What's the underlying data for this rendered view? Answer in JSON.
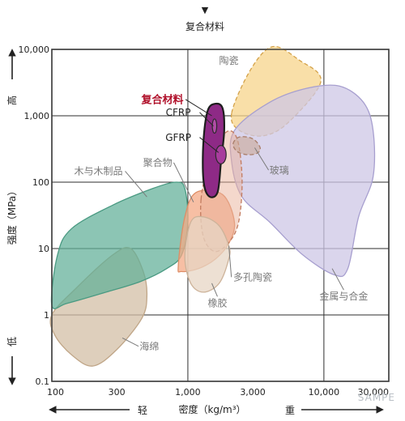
{
  "chart_data": {
    "type": "area",
    "title_marker": "▼",
    "title": "复合材料",
    "xlabel": "密度（kg/m³）",
    "ylabel": "强度（MPa）",
    "x_low_label": "轻",
    "x_high_label": "重",
    "y_high_label": "高",
    "y_low_label": "低",
    "x_scale": "log",
    "y_scale": "log",
    "xlim": [
      100,
      30000
    ],
    "ylim": [
      0.1,
      10000
    ],
    "x_ticks": [
      {
        "value": 100,
        "label": "100"
      },
      {
        "value": 300,
        "label": "300"
      },
      {
        "value": 1000,
        "label": "1,000"
      },
      {
        "value": 3000,
        "label": "3,000"
      },
      {
        "value": 10000,
        "label": "10,000"
      },
      {
        "value": 30000,
        "label": "30,000"
      }
    ],
    "y_ticks": [
      {
        "value": 0.1,
        "label": "0.1"
      },
      {
        "value": 1,
        "label": "1"
      },
      {
        "value": 10,
        "label": "10"
      },
      {
        "value": 100,
        "label": "100"
      },
      {
        "value": 1000,
        "label": "1,000"
      },
      {
        "value": 10000,
        "label": "10,000"
      }
    ],
    "grid_x": [
      100,
      1000,
      10000
    ],
    "grid_y": [
      1,
      10,
      100,
      1000
    ],
    "regions": [
      {
        "name": "海绵",
        "fill": "#d3bfa6",
        "stroke": "#c0a688",
        "opacity": 0.75,
        "points": [
          [
            100,
            1.0
          ],
          [
            150,
            2.5
          ],
          [
            280,
            8.0
          ],
          [
            380,
            10
          ],
          [
            470,
            4.5
          ],
          [
            500,
            2.0
          ],
          [
            460,
            0.9
          ],
          [
            300,
            0.3
          ],
          [
            200,
            0.17
          ],
          [
            140,
            0.25
          ],
          [
            105,
            0.5
          ]
        ]
      },
      {
        "name": "木与木制品",
        "fill": "#5fae97",
        "stroke": "#4a9a82",
        "opacity": 0.72,
        "points": [
          [
            100,
            1.4
          ],
          [
            110,
            8.0
          ],
          [
            140,
            20
          ],
          [
            280,
            45
          ],
          [
            550,
            80
          ],
          [
            820,
            100
          ],
          [
            950,
            80
          ],
          [
            1000,
            25
          ],
          [
            900,
            8.0
          ],
          [
            700,
            5.0
          ],
          [
            450,
            3.2
          ],
          [
            250,
            2.2
          ],
          [
            130,
            1.5
          ]
        ]
      },
      {
        "name": "陶瓷",
        "fill": "#f7d48b",
        "stroke": "#d4a24a",
        "opacity": 0.75,
        "dashed": true,
        "points": [
          [
            2100,
            1100
          ],
          [
            2900,
            5000
          ],
          [
            4200,
            11000
          ],
          [
            6500,
            7000
          ],
          [
            9500,
            3300
          ],
          [
            5500,
            800
          ],
          [
            3600,
            500
          ],
          [
            2400,
            600
          ]
        ]
      },
      {
        "name": "金属与合金",
        "fill": "#cdc7e6",
        "stroke": "#a79fcf",
        "opacity": 0.75,
        "points": [
          [
            2200,
            600
          ],
          [
            4000,
            1600
          ],
          [
            7500,
            2600
          ],
          [
            13000,
            2800
          ],
          [
            19500,
            1600
          ],
          [
            23000,
            600
          ],
          [
            23000,
            120
          ],
          [
            18000,
            30
          ],
          [
            15000,
            5.0
          ],
          [
            12000,
            4.0
          ],
          [
            7000,
            8.0
          ],
          [
            4000,
            25
          ],
          [
            2500,
            60
          ],
          [
            2100,
            200
          ]
        ]
      },
      {
        "name": "聚合物",
        "fill": "#f4aa85",
        "stroke": "#de8d66",
        "opacity": 0.75,
        "points": [
          [
            850,
            5.5
          ],
          [
            950,
            30
          ],
          [
            1150,
            70
          ],
          [
            1800,
            65
          ],
          [
            2200,
            25
          ],
          [
            2000,
            12
          ],
          [
            1600,
            7.0
          ],
          [
            1200,
            5.0
          ],
          [
            900,
            4.5
          ]
        ]
      },
      {
        "name": "多孔陶瓷",
        "fill": "#e9b19a",
        "stroke": "#c27b5f",
        "opacity": 0.5,
        "dashed": true,
        "points": [
          [
            1250,
            55
          ],
          [
            1450,
            200
          ],
          [
            1900,
            560
          ],
          [
            2300,
            450
          ],
          [
            2500,
            120
          ],
          [
            2400,
            30
          ],
          [
            2100,
            14
          ],
          [
            1600,
            9
          ],
          [
            1300,
            15
          ]
        ]
      },
      {
        "name": "橡胶",
        "fill": "#e7d5c4",
        "stroke": "#cdb39a",
        "opacity": 0.75,
        "points": [
          [
            950,
            7.5
          ],
          [
            1050,
            25
          ],
          [
            1300,
            30
          ],
          [
            1700,
            22
          ],
          [
            2000,
            11
          ],
          [
            2000,
            7.0
          ],
          [
            1700,
            3.0
          ],
          [
            1300,
            2.2
          ],
          [
            1050,
            3.0
          ]
        ]
      },
      {
        "name": "玻璃",
        "fill": "#c9a997",
        "stroke": "#a97d69",
        "opacity": 0.6,
        "dashed": true,
        "points": [
          [
            2150,
            380
          ],
          [
            2400,
            480
          ],
          [
            3000,
            450
          ],
          [
            3400,
            330
          ],
          [
            3200,
            270
          ],
          [
            2700,
            260
          ],
          [
            2300,
            290
          ]
        ]
      },
      {
        "name": "复合材料",
        "fill": "#8e2a86",
        "stroke": "#1d1d1d",
        "opacity": 1,
        "strokeWidth": 2.2,
        "points": [
          [
            1400,
            1200
          ],
          [
            1600,
            1520
          ],
          [
            1800,
            1300
          ],
          [
            1850,
            600
          ],
          [
            1750,
            200
          ],
          [
            1650,
            70
          ],
          [
            1420,
            62
          ],
          [
            1300,
            110
          ],
          [
            1300,
            400
          ]
        ]
      }
    ],
    "sub_regions": [
      {
        "name": "CFRP",
        "fill": "#b14da6",
        "stroke": "#2b2b2b",
        "strokeWidth": 1.2,
        "center": [
          1570,
          700
        ],
        "span_x": [
          1520,
          1640
        ],
        "span_y": [
          550,
          900
        ]
      },
      {
        "name": "GFRP",
        "fill": "#a83d9d",
        "stroke": "#2b2b2b",
        "strokeWidth": 1.2,
        "center": [
          1750,
          260
        ],
        "span_x": [
          1600,
          1910
        ],
        "span_y": [
          190,
          360
        ]
      }
    ],
    "labels": [
      {
        "text": "陶瓷",
        "at": [
          2000,
          6000
        ],
        "color": "#7a7a7a",
        "size": 12
      },
      {
        "text": "复合材料",
        "at": [
          650,
          1550
        ],
        "color": "#b0102a",
        "size": 13,
        "bold": true,
        "pointer_to": [
          1500,
          1000
        ]
      },
      {
        "text": "CFRP",
        "at": [
          850,
          1000
        ],
        "color": "#222222",
        "size": 12,
        "pointer_to": [
          1540,
          700
        ]
      },
      {
        "text": "GFRP",
        "at": [
          850,
          420
        ],
        "color": "#222222",
        "size": 12,
        "pointer_to": [
          1680,
          280
        ]
      },
      {
        "text": "木与木制品",
        "at": [
          220,
          130
        ],
        "color": "#7a7a7a",
        "size": 12,
        "pointer_to": [
          500,
          60
        ]
      },
      {
        "text": "聚合物",
        "at": [
          600,
          175
        ],
        "color": "#7a7a7a",
        "size": 12,
        "pointer_to": [
          1100,
          50
        ]
      },
      {
        "text": "玻璃",
        "at": [
          4700,
          135
        ],
        "color": "#7a7a7a",
        "size": 12,
        "pointer_to": [
          3100,
          330
        ]
      },
      {
        "text": "多孔陶瓷",
        "at": [
          3000,
          3.3
        ],
        "color": "#7a7a7a",
        "size": 12,
        "pointer_to": [
          2000,
          11
        ]
      },
      {
        "text": "金属与合金",
        "at": [
          14000,
          1.7
        ],
        "color": "#7a7a7a",
        "size": 12,
        "pointer_to": [
          11500,
          5.0
        ]
      },
      {
        "text": "橡胶",
        "at": [
          1650,
          1.35
        ],
        "color": "#7a7a7a",
        "size": 12,
        "pointer_to": [
          1500,
          3.0
        ]
      },
      {
        "text": "海绵",
        "at": [
          520,
          0.3
        ],
        "color": "#7a7a7a",
        "size": 12,
        "pointer_to": [
          330,
          0.45
        ]
      }
    ]
  },
  "watermark": "SAMPE"
}
